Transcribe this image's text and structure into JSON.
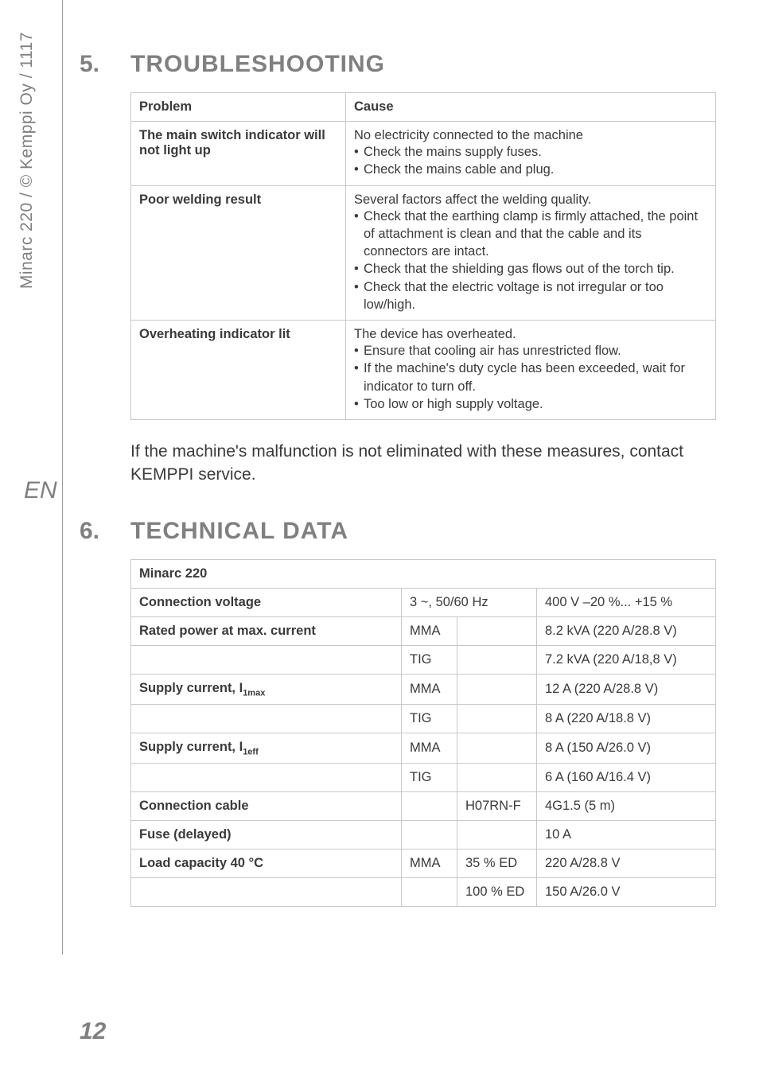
{
  "meta": {
    "sidebar_text": "Minarc 220 / © Kemppi Oy / 1117",
    "lang": "EN",
    "page_number": "12"
  },
  "section5": {
    "num": "5.",
    "title": "TROUBLESHOOTING",
    "header": {
      "problem": "Problem",
      "cause": "Cause"
    },
    "rows": [
      {
        "problem": "The main switch indicator will not light up",
        "cause_lead": "No electricity connected to the machine",
        "cause_items": [
          "Check the mains supply fuses.",
          "Check the mains cable and plug."
        ]
      },
      {
        "problem": "Poor welding result",
        "cause_lead": "Several factors affect the welding quality.",
        "cause_items": [
          "Check that the earthing clamp is firmly attached, the point of attachment is clean and that the cable and its connectors are intact.",
          "Check that the shielding gas flows out of the torch tip.",
          "Check that the electric voltage is not irregular or too low/high."
        ]
      },
      {
        "problem": "Overheating indicator lit",
        "cause_lead": "The device has overheated.",
        "cause_items": [
          "Ensure that cooling air has unrestricted flow.",
          "If the machine's duty cycle has been exceeded, wait for indicator to turn off.",
          "Too low or high supply voltage."
        ]
      }
    ],
    "footer_para": "If the machine's malfunction is not eliminated with these measures, contact KEMPPI service."
  },
  "section6": {
    "num": "6.",
    "title": "TECHNICAL DATA",
    "device": "Minarc 220",
    "rows": [
      {
        "label": "Connection voltage",
        "c2": "3 ~, 50/60 Hz",
        "c2span": 2,
        "c3": "400 V –20 %... +15 %"
      },
      {
        "label": "Rated power at max. current",
        "c2": "MMA",
        "c3": "",
        "c4": "8.2 kVA (220 A/28.8 V)"
      },
      {
        "label": "",
        "c2": "TIG",
        "c3": "",
        "c4": "7.2 kVA (220 A/18,8 V)"
      },
      {
        "label_html": "Supply current, I<sub>1max</sub>",
        "c2": "MMA",
        "c3": "",
        "c4": "12 A (220 A/28.8 V)"
      },
      {
        "label": "",
        "c2": "TIG",
        "c3": "",
        "c4": "8 A (220 A/18.8 V)"
      },
      {
        "label_html": "Supply current, I<sub>1eff</sub>",
        "c2": "MMA",
        "c3": "",
        "c4": "8 A (150 A/26.0 V)"
      },
      {
        "label": "",
        "c2": "TIG",
        "c3": "",
        "c4": "6 A (160 A/16.4 V)"
      },
      {
        "label": "Connection cable",
        "c2": "",
        "c3": "H07RN-F",
        "c4": "4G1.5 (5 m)"
      },
      {
        "label": "Fuse (delayed)",
        "c2": "",
        "c3": "",
        "c4": "10 A"
      },
      {
        "label": "Load capacity 40 °C",
        "c2": "MMA",
        "c3": "35 % ED",
        "c4": "220 A/28.8 V"
      },
      {
        "label": "",
        "c2": "",
        "c3": "100 % ED",
        "c4": "150 A/26.0 V"
      }
    ]
  },
  "style": {
    "page_bg": "#ffffff",
    "text_color": "#3a3a3a",
    "muted_color": "#808080",
    "border_color": "#c8c8c8",
    "body_fontsize": 16.5,
    "heading_fontsize": 30,
    "para_fontsize": 21
  }
}
